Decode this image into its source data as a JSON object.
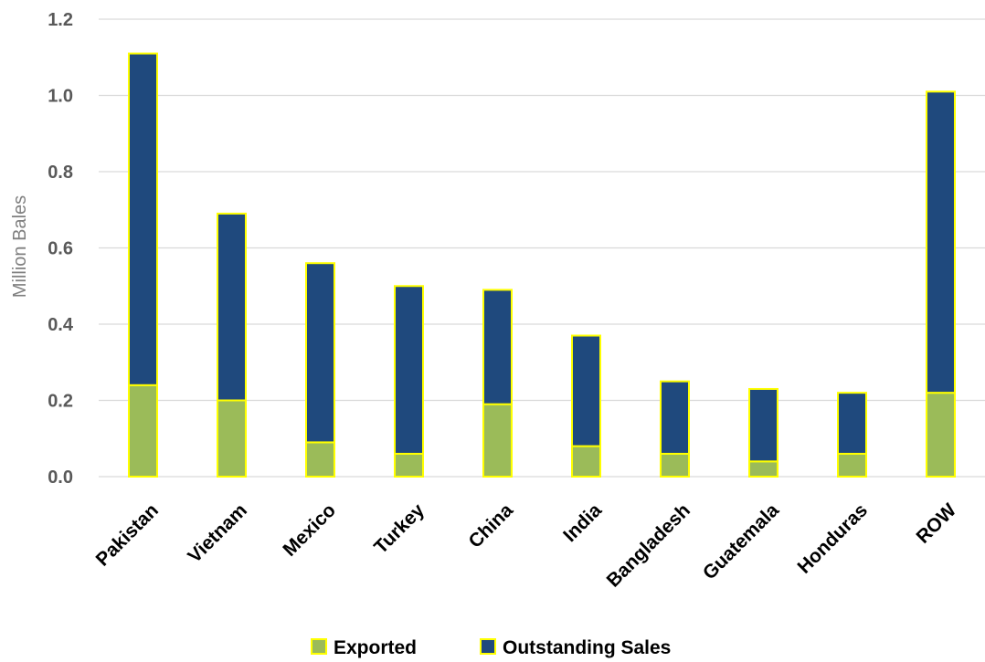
{
  "chart_data": {
    "type": "bar",
    "stacked": true,
    "title": "",
    "xlabel": "",
    "ylabel": "Million Bales",
    "ylim": [
      0,
      1.2
    ],
    "yticks": [
      "0.0",
      "0.2",
      "0.4",
      "0.6",
      "0.8",
      "1.0",
      "1.2"
    ],
    "grid": true,
    "legend": "bottom",
    "categories": [
      "Pakistan",
      "Vietnam",
      "Mexico",
      "Turkey",
      "China",
      "India",
      "Bangladesh",
      "Guatemala",
      "Honduras",
      "ROW"
    ],
    "series": [
      {
        "name": "Exported",
        "color": "#9BBB59",
        "values": [
          0.24,
          0.2,
          0.09,
          0.06,
          0.19,
          0.08,
          0.06,
          0.04,
          0.06,
          0.22
        ]
      },
      {
        "name": "Outstanding Sales",
        "color": "#1F497D",
        "values": [
          0.87,
          0.49,
          0.47,
          0.44,
          0.3,
          0.29,
          0.19,
          0.19,
          0.16,
          0.79
        ]
      }
    ],
    "bar_outline_color": "#FFFF00",
    "grid_color": "#D9D9D9"
  }
}
